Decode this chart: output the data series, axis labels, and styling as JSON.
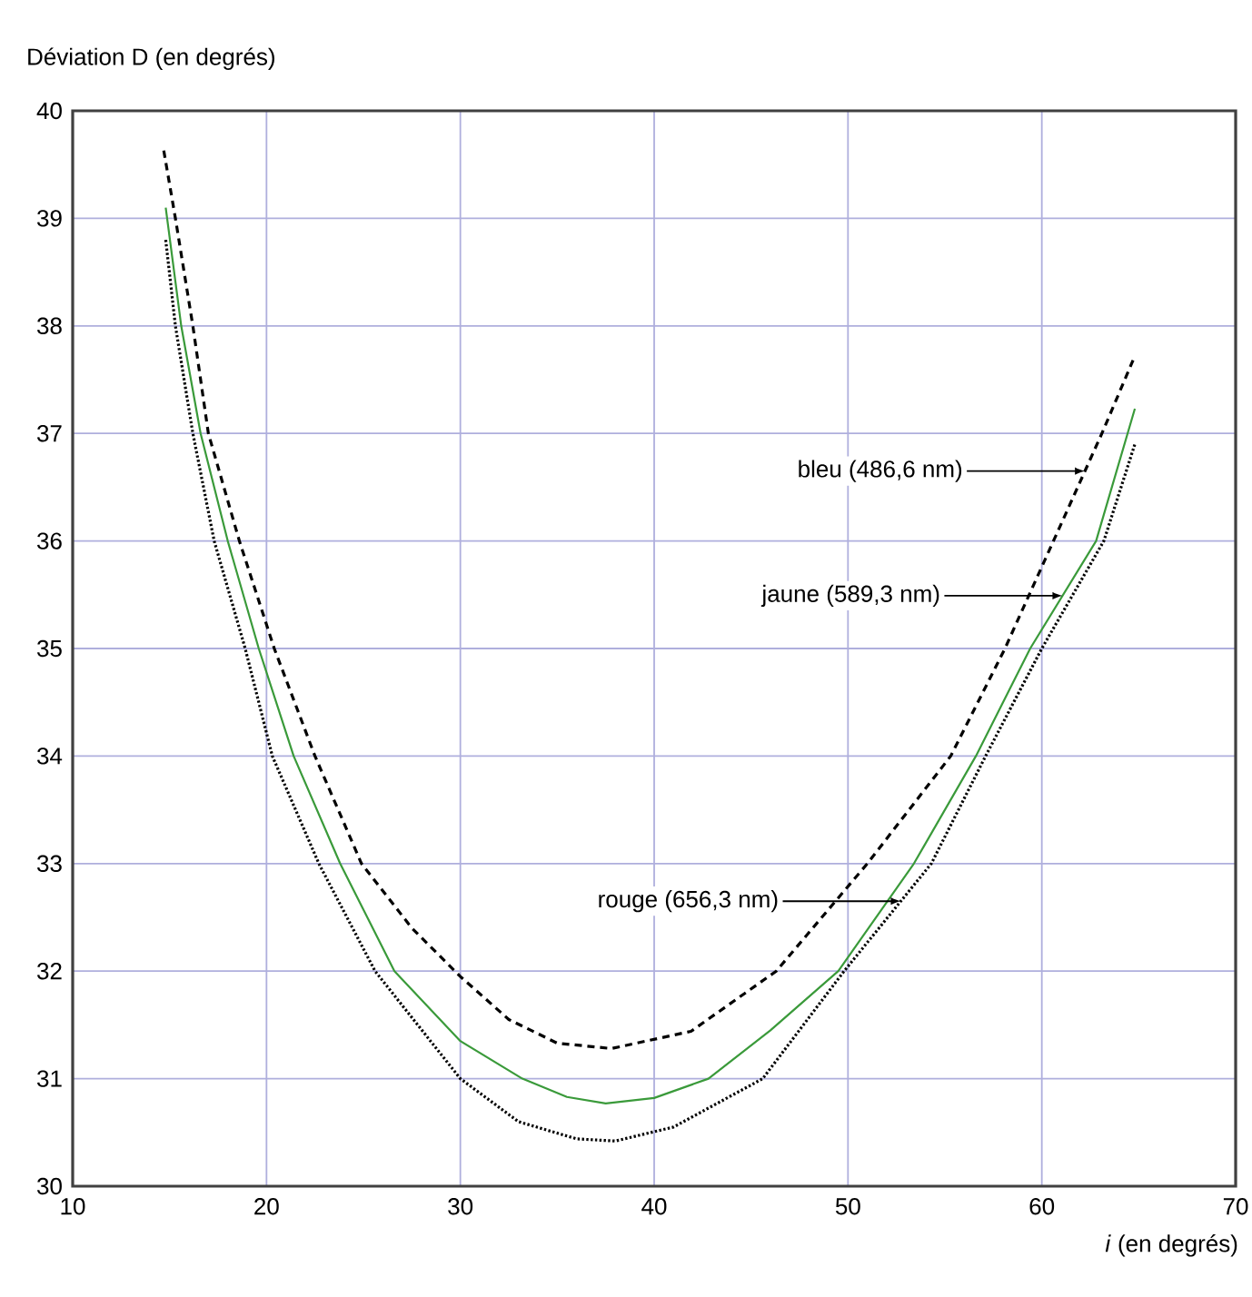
{
  "chart_data": {
    "type": "line",
    "xlabel": "*i* (en degrés)",
    "ylabel": "Déviation D (en degrés)",
    "xlim": [
      10,
      70
    ],
    "ylim": [
      30,
      40
    ],
    "xticks": [
      10,
      20,
      30,
      40,
      50,
      60,
      70
    ],
    "yticks": [
      30,
      31,
      32,
      33,
      34,
      35,
      36,
      37,
      38,
      39,
      40
    ],
    "grid": true,
    "series": [
      {
        "color": "#000000",
        "line_style": "dashed",
        "x": [
          14.7,
          15.3,
          16.2,
          17.0,
          18.6,
          20.4,
          22.5,
          24.9,
          27.5,
          30.0,
          32.5,
          35.0,
          37.8,
          41.9,
          46.3,
          51.0,
          55.3,
          58.1,
          60.6,
          63.1,
          64.8
        ],
        "values": [
          39.63,
          39,
          38,
          37,
          36,
          35,
          34,
          33,
          32.4,
          31.95,
          31.55,
          31.33,
          31.28,
          31.44,
          32,
          33,
          34,
          35,
          36,
          37,
          37.72
        ]
      },
      {
        "color": "#3a9a3a",
        "line_style": "solid",
        "x": [
          14.8,
          15.6,
          16.6,
          18.0,
          19.6,
          21.4,
          23.8,
          26.6,
          30.0,
          33.2,
          35.5,
          37.5,
          40.0,
          42.8,
          46.0,
          49.5,
          53.4,
          56.6,
          59.4,
          62.8,
          64.8
        ],
        "values": [
          39.1,
          38,
          37,
          36,
          35,
          34,
          33,
          32,
          31.35,
          31,
          30.83,
          30.77,
          30.82,
          31,
          31.45,
          32,
          33,
          34,
          35,
          36,
          37.23
        ]
      },
      {
        "color": "#000000",
        "line_style": "dotted",
        "x": [
          14.8,
          15.3,
          16.2,
          17.3,
          18.9,
          20.3,
          22.7,
          25.6,
          30.0,
          33.0,
          36.0,
          38.0,
          41.0,
          45.6,
          49.8,
          54.3,
          57.1,
          60.0,
          63.2,
          64.8
        ],
        "values": [
          38.8,
          38,
          37,
          36,
          35,
          34,
          33,
          32,
          31,
          30.6,
          30.44,
          30.42,
          30.55,
          31,
          32,
          33,
          34,
          35,
          36,
          36.9
        ]
      }
    ],
    "annotations": [
      "bleu (486,6 nm)",
      "jaune (589,3 nm)",
      "rouge (656,3 nm)"
    ]
  }
}
